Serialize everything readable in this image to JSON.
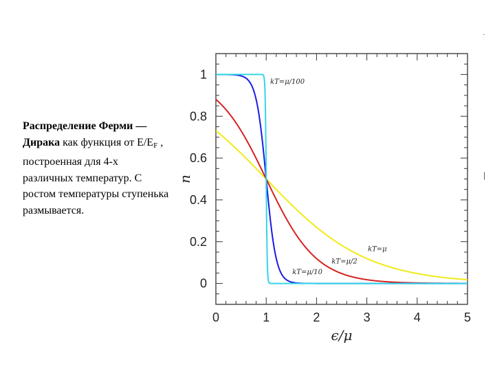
{
  "caption": {
    "title": "Распределение Ферми — Дирака",
    "text1": " как функция от  E/E",
    "sub": "F",
    "text2": "    , построенная для 4-х различных температур. С ростом температуры ступенька размывается."
  },
  "stray_marks": [
    ".",
    "|"
  ],
  "chart_data": {
    "type": "line",
    "xlabel": "ϵ/μ",
    "ylabel": "n",
    "xlim": [
      0,
      5
    ],
    "ylim": [
      -0.1,
      1.1
    ],
    "xticks": [
      0,
      1,
      2,
      3,
      4,
      5
    ],
    "yticks": [
      0,
      0.2,
      0.4,
      0.6,
      0.8,
      1
    ],
    "x_tick_labels": [
      "0",
      "1",
      "2",
      "3",
      "4",
      "5"
    ],
    "y_tick_labels": [
      "0",
      "0.2",
      "0.4",
      "0.6",
      "0.8",
      "1"
    ],
    "grid": false,
    "series": [
      {
        "name": "kT=μ/100",
        "kT": 0.01,
        "color": "#33d6e6",
        "label_pos": [
          1.08,
          0.955
        ]
      },
      {
        "name": "kT=μ/10",
        "kT": 0.1,
        "color": "#1a1ae6",
        "label_pos": [
          1.52,
          0.045
        ]
      },
      {
        "name": "kT=μ/2",
        "kT": 0.5,
        "color": "#d62020",
        "label_pos": [
          2.3,
          0.095
        ]
      },
      {
        "name": "kT=μ",
        "kT": 1.0,
        "color": "#f2ea16",
        "label_pos": [
          3.02,
          0.155
        ]
      }
    ],
    "formula": "n = 1 / (exp((x - 1)/kT) + 1)"
  }
}
